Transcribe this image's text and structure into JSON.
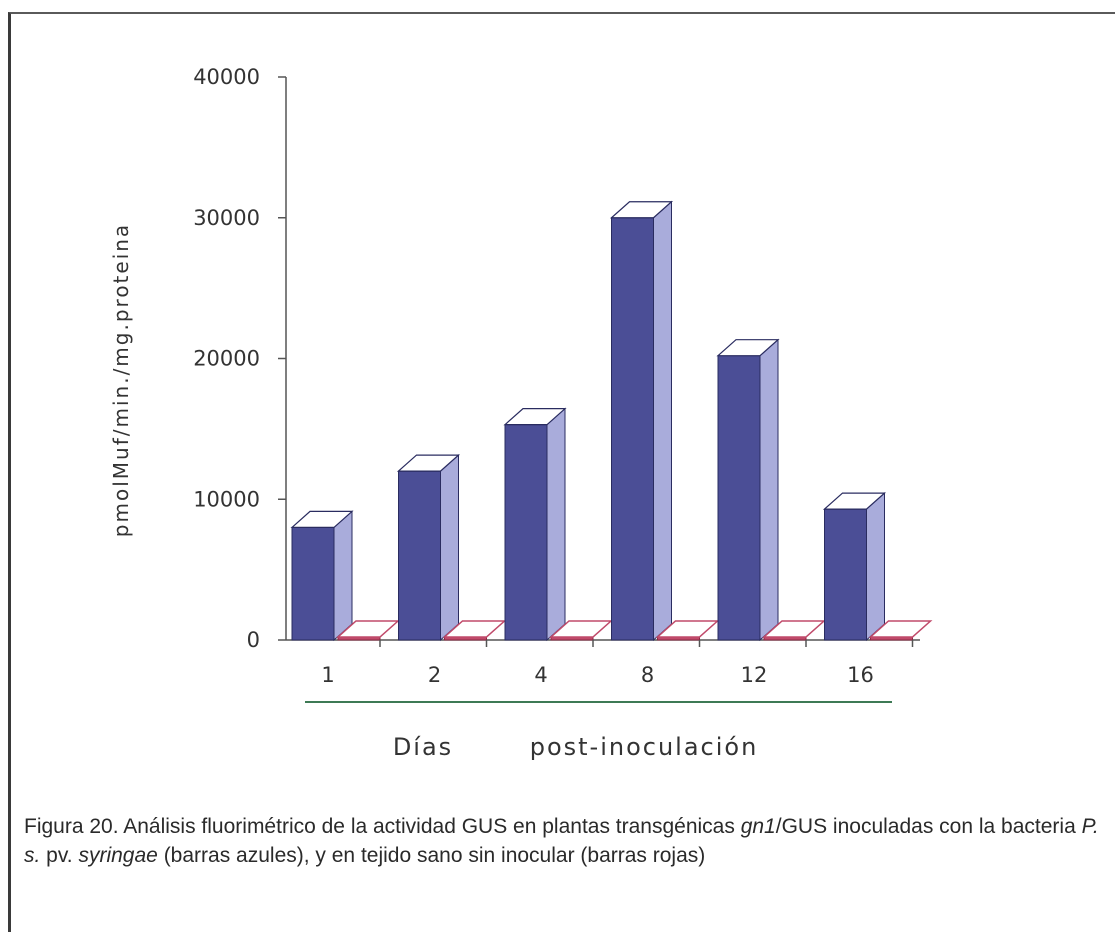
{
  "chart_data": {
    "type": "bar",
    "style": "3d",
    "categories": [
      "1",
      "2",
      "4",
      "8",
      "12",
      "16"
    ],
    "series": [
      {
        "values": [
          8000,
          12000,
          15300,
          30000,
          20200,
          9300
        ],
        "color": "#4b4e96"
      },
      {
        "values": [
          0,
          0,
          0,
          0,
          0,
          0
        ],
        "color": "#c04a6a"
      }
    ],
    "yticks": [
      "0",
      "10000",
      "20000",
      "30000",
      "40000"
    ],
    "ylim": [
      0,
      40000
    ],
    "ylabel": "pmolMuf/min./mg.proteina",
    "xlabel_a": "Días",
    "xlabel_b": "post-inoculación",
    "grid": false,
    "legend": "none"
  },
  "caption": {
    "part1": "Figura 20. Análisis fluorimétrico de la actividad GUS en plantas transgénicas ",
    "part2": "gn1",
    "part3": "/GUS inoculadas con la bacteria ",
    "part4": "P. s.",
    "part5": " pv. ",
    "part6": "syringae",
    "part7": "  (barras azules), y en tejido sano sin inocular (barras rojas)"
  }
}
